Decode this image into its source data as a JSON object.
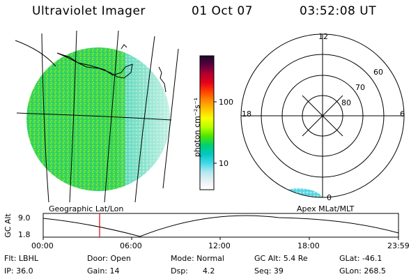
{
  "header": {
    "instrument": "Ultraviolet Imager",
    "date": "01 Oct 07",
    "time": "03:52:08 UT"
  },
  "colorbar": {
    "unit": "photon cm⁻²s⁻¹",
    "ticks": [
      "100",
      "10"
    ],
    "colors": [
      "#1a0a2a",
      "#5a0040",
      "#b00030",
      "#e6001a",
      "#ff4000",
      "#ff8a00",
      "#ffc400",
      "#f6ff00",
      "#b8ff00",
      "#4ce600",
      "#00d070",
      "#00c8c0",
      "#40d8e8",
      "#b0e8f0",
      "#e8f0f4",
      "#ffffff"
    ]
  },
  "polar": {
    "mlt_labels": {
      "top": "12",
      "left": "18",
      "right": "6",
      "bottom": "0"
    },
    "lat_labels": [
      "60",
      "70",
      "80"
    ]
  },
  "timeline": {
    "left_label": "Geographic Lat/Lon",
    "right_label": "Apex MLat/MLT",
    "axis_label": "GC Alt",
    "y_ticks": [
      "9.0",
      "1.8"
    ],
    "x_ticks": [
      "00:00",
      "06:00",
      "12:00",
      "18:00",
      "23:59"
    ]
  },
  "status": {
    "filter": "Flt: LBHL",
    "ip": "IP: 36.0",
    "door": "Door: Open",
    "gain": "Gain: 14",
    "mode": "Mode: Normal",
    "dsp": "Dsp:      4.2",
    "gc_alt": "GC Alt: 5.4 Re",
    "seq": "Seq: 39",
    "glat": "GLat: -46.1",
    "glon": "GLon: 268.5"
  },
  "colors": {
    "marker": "#e00000"
  }
}
